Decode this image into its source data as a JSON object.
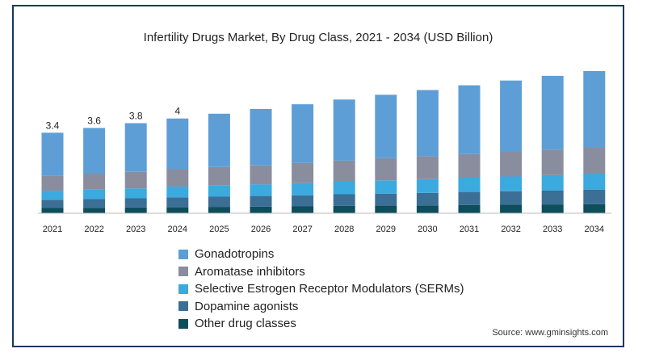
{
  "chart_data": {
    "type": "bar",
    "stacked": true,
    "title": "Infertility Drugs Market, By Drug Class, 2021 - 2034 (USD Billion)",
    "categories": [
      "2021",
      "2022",
      "2023",
      "2024",
      "2025",
      "2026",
      "2027",
      "2028",
      "2029",
      "2030",
      "2031",
      "2032",
      "2033",
      "2034"
    ],
    "totals": [
      3.4,
      3.6,
      3.8,
      4.0,
      4.2,
      4.4,
      4.6,
      4.8,
      5.0,
      5.2,
      5.4,
      5.6,
      5.8,
      6.0
    ],
    "total_labels": [
      "3.4",
      "3.6",
      "3.8",
      "4",
      null,
      null,
      null,
      null,
      null,
      null,
      null,
      null,
      null,
      null
    ],
    "series": [
      {
        "name": "Other drug classes",
        "color": "#0d4d5c",
        "values": [
          0.22,
          0.23,
          0.24,
          0.26,
          0.27,
          0.28,
          0.29,
          0.31,
          0.32,
          0.33,
          0.35,
          0.36,
          0.37,
          0.38
        ]
      },
      {
        "name": "Dopamine agonists",
        "color": "#3b6f96",
        "values": [
          0.35,
          0.37,
          0.39,
          0.41,
          0.43,
          0.45,
          0.47,
          0.49,
          0.51,
          0.53,
          0.55,
          0.57,
          0.59,
          0.62
        ]
      },
      {
        "name": "Selective Estrogen Receptor Modulators (SERMs)",
        "color": "#3aaadf",
        "values": [
          0.38,
          0.4,
          0.42,
          0.45,
          0.47,
          0.49,
          0.51,
          0.53,
          0.56,
          0.58,
          0.6,
          0.62,
          0.65,
          0.67
        ]
      },
      {
        "name": "Aromatase inhibitors",
        "color": "#898d9e",
        "values": [
          0.63,
          0.67,
          0.7,
          0.74,
          0.78,
          0.82,
          0.85,
          0.89,
          0.93,
          0.96,
          1.0,
          1.04,
          1.07,
          1.11
        ]
      },
      {
        "name": "Gonadotropins",
        "color": "#5e9ed6",
        "values": [
          1.82,
          1.93,
          2.05,
          2.14,
          2.25,
          2.36,
          2.48,
          2.58,
          2.68,
          2.8,
          2.9,
          3.01,
          3.12,
          3.22
        ]
      }
    ],
    "legend_order": [
      "Gonadotropins",
      "Aromatase inhibitors",
      "Selective Estrogen Receptor Modulators (SERMs)",
      "Dopamine agonists",
      "Other drug classes"
    ],
    "xlabel": "",
    "ylabel": "",
    "ylim": [
      0,
      6.2
    ],
    "grid": false,
    "legend_position": "bottom-left"
  },
  "source": "Source: www.gminsights.com"
}
